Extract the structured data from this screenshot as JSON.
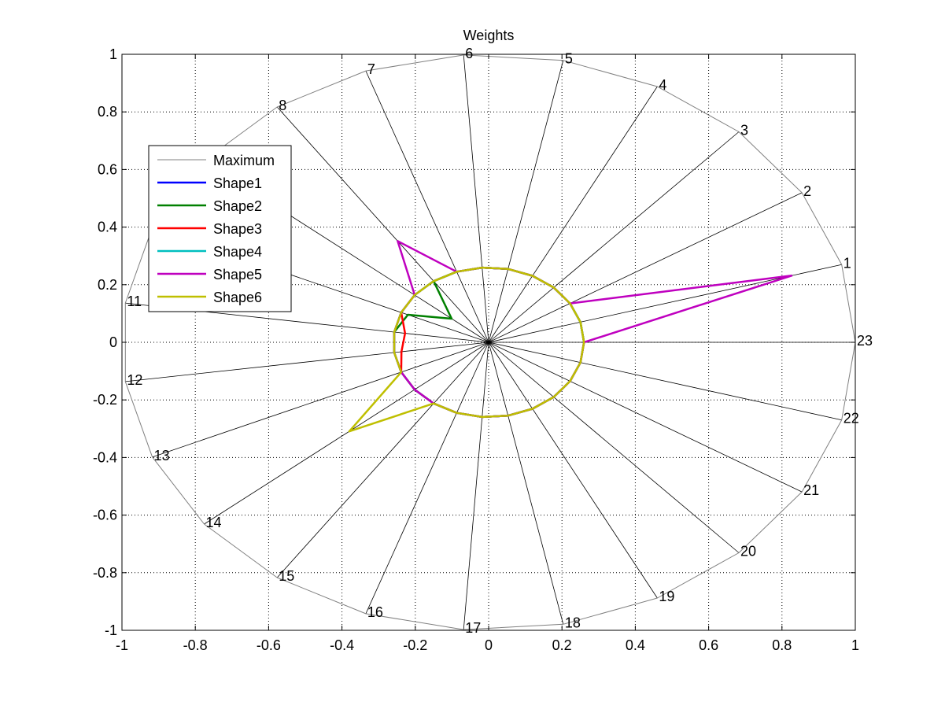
{
  "chart_data": {
    "type": "line",
    "title": "Weights",
    "xlabel": "",
    "ylabel": "",
    "xlim": [
      -1,
      1
    ],
    "ylim": [
      -1,
      1
    ],
    "xticks": [
      "-1",
      "-0.8",
      "-0.6",
      "-0.4",
      "-0.2",
      "0",
      "0.2",
      "0.4",
      "0.6",
      "0.8",
      "1"
    ],
    "yticks": [
      "1",
      "0.8",
      "0.6",
      "0.4",
      "0.2",
      "0",
      "-0.2",
      "-0.4",
      "-0.6",
      "-0.8",
      "-1"
    ],
    "grid": true,
    "legend_position": "upper-left",
    "spoke_labels": [
      "1",
      "2",
      "3",
      "4",
      "5",
      "6",
      "7",
      "8",
      "9",
      "10",
      "11",
      "12",
      "13",
      "14",
      "15",
      "16",
      "17",
      "18",
      "19",
      "20",
      "21",
      "22",
      "23"
    ],
    "spoke_angles_deg": [
      15.65,
      31.3,
      46.96,
      62.61,
      78.26,
      93.91,
      109.57,
      125.22,
      140.87,
      156.52,
      172.17,
      187.83,
      203.48,
      219.13,
      234.78,
      250.43,
      266.09,
      281.74,
      297.39,
      313.04,
      328.7,
      344.35,
      360.0
    ],
    "series": [
      {
        "name": "Maximum",
        "color": "#808080",
        "width": 1,
        "values": [
          1,
          1,
          1,
          1,
          1,
          1,
          1,
          1,
          1,
          1,
          1,
          1,
          1,
          1,
          1,
          1,
          1,
          1,
          1,
          1,
          1,
          1,
          1
        ]
      },
      {
        "name": "Shape1",
        "color": "#0000ff",
        "width": 2.5,
        "values": [
          0.26,
          0.26,
          0.26,
          0.26,
          0.26,
          0.26,
          0.26,
          0.26,
          0.26,
          0.26,
          0.26,
          0.26,
          0.26,
          0.26,
          0.26,
          0.26,
          0.26,
          0.26,
          0.26,
          0.26,
          0.26,
          0.26,
          0.26
        ]
      },
      {
        "name": "Shape2",
        "color": "#008000",
        "width": 2.5,
        "values": [
          0.26,
          0.26,
          0.26,
          0.26,
          0.26,
          0.26,
          0.26,
          0.26,
          0.13,
          0.24,
          0.26,
          0.26,
          0.26,
          0.26,
          0.26,
          0.26,
          0.26,
          0.26,
          0.26,
          0.26,
          0.26,
          0.26,
          0.26
        ]
      },
      {
        "name": "Shape3",
        "color": "#ff0000",
        "width": 2.5,
        "values": [
          0.26,
          0.26,
          0.26,
          0.26,
          0.26,
          0.26,
          0.26,
          0.26,
          0.26,
          0.26,
          0.23,
          0.24,
          0.26,
          0.26,
          0.26,
          0.26,
          0.26,
          0.26,
          0.26,
          0.26,
          0.26,
          0.26,
          0.26
        ]
      },
      {
        "name": "Shape4",
        "color": "#00bfbf",
        "width": 2.5,
        "values": [
          0.26,
          0.26,
          0.26,
          0.26,
          0.26,
          0.26,
          0.26,
          0.26,
          0.26,
          0.26,
          0.26,
          0.26,
          0.26,
          0.26,
          0.26,
          0.26,
          0.26,
          0.26,
          0.26,
          0.26,
          0.26,
          0.26,
          0.26
        ]
      },
      {
        "name": "Shape5",
        "color": "#bf00bf",
        "width": 2.5,
        "values": [
          0.86,
          0.26,
          0.26,
          0.26,
          0.26,
          0.26,
          0.26,
          0.43,
          0.26,
          0.26,
          0.26,
          0.26,
          0.26,
          0.26,
          0.26,
          0.26,
          0.26,
          0.26,
          0.26,
          0.26,
          0.26,
          0.26,
          0.26
        ]
      },
      {
        "name": "Shape6",
        "color": "#bfbf00",
        "width": 2.5,
        "values": [
          0.26,
          0.26,
          0.26,
          0.26,
          0.26,
          0.26,
          0.26,
          0.26,
          0.26,
          0.26,
          0.26,
          0.26,
          0.26,
          0.49,
          0.26,
          0.26,
          0.26,
          0.26,
          0.26,
          0.26,
          0.26,
          0.26,
          0.26
        ]
      }
    ]
  }
}
